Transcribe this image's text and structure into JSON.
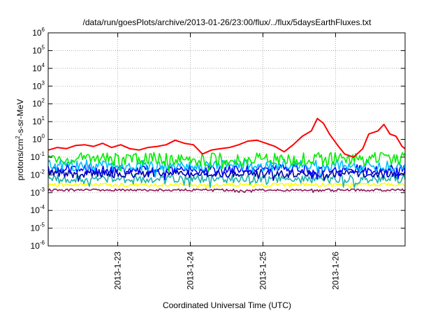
{
  "chart_data": {
    "type": "line",
    "title": "/data/run/goesPlots/archive/2013-01-26/23:00/flux/../flux/5daysEarthFluxes.txt",
    "xlabel": "Coordinated Universal Time (UTC)",
    "ylabel": {
      "base": "protons/cm",
      "sup": "2",
      "rest": "-s-sr-MeV"
    },
    "y_scale": "log",
    "ylim": [
      1e-06,
      1000000.0
    ],
    "y_ticks": [
      {
        "base": "10",
        "exp": "-6",
        "value": -6
      },
      {
        "base": "10",
        "exp": "-5",
        "value": -5
      },
      {
        "base": "10",
        "exp": "-4",
        "value": -4
      },
      {
        "base": "10",
        "exp": "-3",
        "value": -3
      },
      {
        "base": "10",
        "exp": "-2",
        "value": -2
      },
      {
        "base": "10",
        "exp": "-1",
        "value": -1
      },
      {
        "base": "10",
        "exp": "0",
        "value": 0
      },
      {
        "base": "10",
        "exp": "1",
        "value": 1
      },
      {
        "base": "10",
        "exp": "2",
        "value": 2
      },
      {
        "base": "10",
        "exp": "3",
        "value": 3
      },
      {
        "base": "10",
        "exp": "4",
        "value": 4
      },
      {
        "base": "10",
        "exp": "5",
        "value": 5
      },
      {
        "base": "10",
        "exp": "6",
        "value": 6
      }
    ],
    "xlim": [
      "2013-01-22T01:00",
      "2013-01-26T23:00"
    ],
    "x_ticks": [
      {
        "label": "2013-1-23",
        "value": "2013-01-23T00:00"
      },
      {
        "label": "2013-1-24",
        "value": "2013-01-24T00:00"
      },
      {
        "label": "2013-1-25",
        "value": "2013-01-25T00:00"
      },
      {
        "label": "2013-1-26",
        "value": "2013-01-26T00:00"
      }
    ],
    "grid": true,
    "series": [
      {
        "color": "#ff0000",
        "points": [
          [
            "2013-01-22T01:00",
            0.25
          ],
          [
            "2013-01-22T04:00",
            0.35
          ],
          [
            "2013-01-22T07:00",
            0.3
          ],
          [
            "2013-01-22T10:00",
            0.45
          ],
          [
            "2013-01-22T13:00",
            0.5
          ],
          [
            "2013-01-22T16:00",
            0.4
          ],
          [
            "2013-01-22T19:00",
            0.6
          ],
          [
            "2013-01-22T22:00",
            0.35
          ],
          [
            "2013-01-23T01:00",
            0.5
          ],
          [
            "2013-01-23T04:00",
            0.3
          ],
          [
            "2013-01-23T07:00",
            0.25
          ],
          [
            "2013-01-23T10:00",
            0.35
          ],
          [
            "2013-01-23T13:00",
            0.4
          ],
          [
            "2013-01-23T16:00",
            0.5
          ],
          [
            "2013-01-23T19:00",
            0.9
          ],
          [
            "2013-01-23T22:00",
            0.6
          ],
          [
            "2013-01-24T01:00",
            0.5
          ],
          [
            "2013-01-24T04:00",
            0.15
          ],
          [
            "2013-01-24T07:00",
            0.25
          ],
          [
            "2013-01-24T10:00",
            0.3
          ],
          [
            "2013-01-24T13:00",
            0.35
          ],
          [
            "2013-01-24T16:00",
            0.5
          ],
          [
            "2013-01-24T19:00",
            0.8
          ],
          [
            "2013-01-24T22:00",
            0.9
          ],
          [
            "2013-01-25T01:00",
            0.6
          ],
          [
            "2013-01-25T04:00",
            0.4
          ],
          [
            "2013-01-25T07:00",
            0.2
          ],
          [
            "2013-01-25T10:00",
            0.5
          ],
          [
            "2013-01-25T13:00",
            1.5
          ],
          [
            "2013-01-25T16:00",
            3.0
          ],
          [
            "2013-01-25T18:00",
            15.0
          ],
          [
            "2013-01-25T20:00",
            8.0
          ],
          [
            "2013-01-25T22:00",
            2.0
          ],
          [
            "2013-01-26T01:00",
            0.4
          ],
          [
            "2013-01-26T03:00",
            0.15
          ],
          [
            "2013-01-26T06:00",
            0.1
          ],
          [
            "2013-01-26T09:00",
            0.3
          ],
          [
            "2013-01-26T11:00",
            2.0
          ],
          [
            "2013-01-26T14:00",
            3.0
          ],
          [
            "2013-01-26T16:00",
            7.0
          ],
          [
            "2013-01-26T18:00",
            2.0
          ],
          [
            "2013-01-26T20:00",
            1.5
          ],
          [
            "2013-01-26T22:00",
            0.4
          ],
          [
            "2013-01-26T23:00",
            0.3
          ]
        ]
      },
      {
        "color": "#00ee00",
        "base": 0.08,
        "amp": 0.45
      },
      {
        "color": "#00bfff",
        "base": 0.035,
        "amp": 0.4
      },
      {
        "color": "#0000ff",
        "base": 0.02,
        "amp": 0.35
      },
      {
        "color": "#0000aa",
        "base": 0.012,
        "amp": 0.3
      },
      {
        "color": "#20b2aa",
        "base": 0.006,
        "amp": 0.3
      },
      {
        "color": "#ffff00",
        "base": 0.0028,
        "amp": 0.12
      },
      {
        "color": "#8b1a5a",
        "base": 0.0014,
        "amp": 0.08
      }
    ]
  }
}
